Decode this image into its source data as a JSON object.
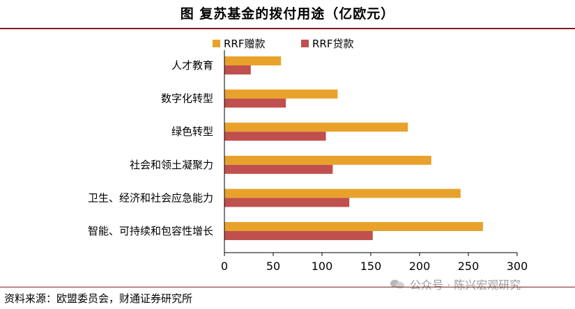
{
  "title": "图 复苏基金的拨付用途（亿欧元）",
  "source": "资料来源：欧盟委员会，财通证券研究所",
  "watermark": "公众号 · 陈兴宏观研究",
  "chart_data": {
    "type": "bar",
    "orientation": "horizontal",
    "categories": [
      "人才教育",
      "数字化转型",
      "绿色转型",
      "社会和领土凝聚力",
      "卫生、经济和社会应急能力",
      "智能、可持续和包容性增长"
    ],
    "series": [
      {
        "name": "RRF赠款",
        "color": "#E8A22B",
        "values": [
          58,
          116,
          188,
          212,
          242,
          265
        ]
      },
      {
        "name": "RRF贷款",
        "color": "#C0504D",
        "values": [
          27,
          63,
          104,
          111,
          128,
          152
        ]
      }
    ],
    "xlim": [
      0,
      300
    ],
    "xticks": [
      0,
      50,
      100,
      150,
      200,
      250,
      300
    ],
    "legend_position": "top",
    "grid": false
  }
}
